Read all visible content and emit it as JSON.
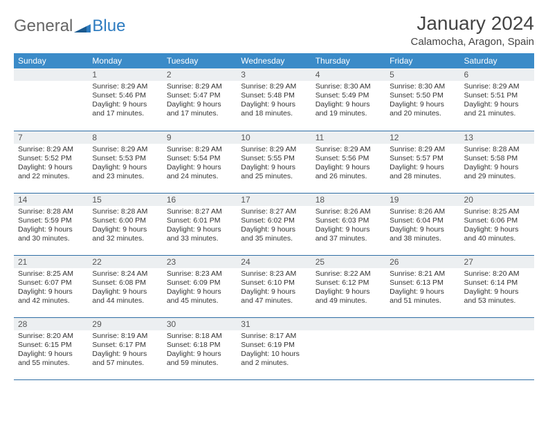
{
  "brand": {
    "part1": "General",
    "part2": "Blue"
  },
  "title": "January 2024",
  "location": "Calamocha, Aragon, Spain",
  "colors": {
    "header_bg": "#3b8bc8",
    "header_text": "#ffffff",
    "daynum_bg": "#eceff1",
    "border": "#2e6da4",
    "brand_gray": "#666666",
    "brand_blue": "#2e7cc0"
  },
  "day_names": [
    "Sunday",
    "Monday",
    "Tuesday",
    "Wednesday",
    "Thursday",
    "Friday",
    "Saturday"
  ],
  "weeks": [
    [
      null,
      {
        "n": "1",
        "sr": "Sunrise: 8:29 AM",
        "ss": "Sunset: 5:46 PM",
        "dl": "Daylight: 9 hours and 17 minutes."
      },
      {
        "n": "2",
        "sr": "Sunrise: 8:29 AM",
        "ss": "Sunset: 5:47 PM",
        "dl": "Daylight: 9 hours and 17 minutes."
      },
      {
        "n": "3",
        "sr": "Sunrise: 8:29 AM",
        "ss": "Sunset: 5:48 PM",
        "dl": "Daylight: 9 hours and 18 minutes."
      },
      {
        "n": "4",
        "sr": "Sunrise: 8:30 AM",
        "ss": "Sunset: 5:49 PM",
        "dl": "Daylight: 9 hours and 19 minutes."
      },
      {
        "n": "5",
        "sr": "Sunrise: 8:30 AM",
        "ss": "Sunset: 5:50 PM",
        "dl": "Daylight: 9 hours and 20 minutes."
      },
      {
        "n": "6",
        "sr": "Sunrise: 8:29 AM",
        "ss": "Sunset: 5:51 PM",
        "dl": "Daylight: 9 hours and 21 minutes."
      }
    ],
    [
      {
        "n": "7",
        "sr": "Sunrise: 8:29 AM",
        "ss": "Sunset: 5:52 PM",
        "dl": "Daylight: 9 hours and 22 minutes."
      },
      {
        "n": "8",
        "sr": "Sunrise: 8:29 AM",
        "ss": "Sunset: 5:53 PM",
        "dl": "Daylight: 9 hours and 23 minutes."
      },
      {
        "n": "9",
        "sr": "Sunrise: 8:29 AM",
        "ss": "Sunset: 5:54 PM",
        "dl": "Daylight: 9 hours and 24 minutes."
      },
      {
        "n": "10",
        "sr": "Sunrise: 8:29 AM",
        "ss": "Sunset: 5:55 PM",
        "dl": "Daylight: 9 hours and 25 minutes."
      },
      {
        "n": "11",
        "sr": "Sunrise: 8:29 AM",
        "ss": "Sunset: 5:56 PM",
        "dl": "Daylight: 9 hours and 26 minutes."
      },
      {
        "n": "12",
        "sr": "Sunrise: 8:29 AM",
        "ss": "Sunset: 5:57 PM",
        "dl": "Daylight: 9 hours and 28 minutes."
      },
      {
        "n": "13",
        "sr": "Sunrise: 8:28 AM",
        "ss": "Sunset: 5:58 PM",
        "dl": "Daylight: 9 hours and 29 minutes."
      }
    ],
    [
      {
        "n": "14",
        "sr": "Sunrise: 8:28 AM",
        "ss": "Sunset: 5:59 PM",
        "dl": "Daylight: 9 hours and 30 minutes."
      },
      {
        "n": "15",
        "sr": "Sunrise: 8:28 AM",
        "ss": "Sunset: 6:00 PM",
        "dl": "Daylight: 9 hours and 32 minutes."
      },
      {
        "n": "16",
        "sr": "Sunrise: 8:27 AM",
        "ss": "Sunset: 6:01 PM",
        "dl": "Daylight: 9 hours and 33 minutes."
      },
      {
        "n": "17",
        "sr": "Sunrise: 8:27 AM",
        "ss": "Sunset: 6:02 PM",
        "dl": "Daylight: 9 hours and 35 minutes."
      },
      {
        "n": "18",
        "sr": "Sunrise: 8:26 AM",
        "ss": "Sunset: 6:03 PM",
        "dl": "Daylight: 9 hours and 37 minutes."
      },
      {
        "n": "19",
        "sr": "Sunrise: 8:26 AM",
        "ss": "Sunset: 6:04 PM",
        "dl": "Daylight: 9 hours and 38 minutes."
      },
      {
        "n": "20",
        "sr": "Sunrise: 8:25 AM",
        "ss": "Sunset: 6:06 PM",
        "dl": "Daylight: 9 hours and 40 minutes."
      }
    ],
    [
      {
        "n": "21",
        "sr": "Sunrise: 8:25 AM",
        "ss": "Sunset: 6:07 PM",
        "dl": "Daylight: 9 hours and 42 minutes."
      },
      {
        "n": "22",
        "sr": "Sunrise: 8:24 AM",
        "ss": "Sunset: 6:08 PM",
        "dl": "Daylight: 9 hours and 44 minutes."
      },
      {
        "n": "23",
        "sr": "Sunrise: 8:23 AM",
        "ss": "Sunset: 6:09 PM",
        "dl": "Daylight: 9 hours and 45 minutes."
      },
      {
        "n": "24",
        "sr": "Sunrise: 8:23 AM",
        "ss": "Sunset: 6:10 PM",
        "dl": "Daylight: 9 hours and 47 minutes."
      },
      {
        "n": "25",
        "sr": "Sunrise: 8:22 AM",
        "ss": "Sunset: 6:12 PM",
        "dl": "Daylight: 9 hours and 49 minutes."
      },
      {
        "n": "26",
        "sr": "Sunrise: 8:21 AM",
        "ss": "Sunset: 6:13 PM",
        "dl": "Daylight: 9 hours and 51 minutes."
      },
      {
        "n": "27",
        "sr": "Sunrise: 8:20 AM",
        "ss": "Sunset: 6:14 PM",
        "dl": "Daylight: 9 hours and 53 minutes."
      }
    ],
    [
      {
        "n": "28",
        "sr": "Sunrise: 8:20 AM",
        "ss": "Sunset: 6:15 PM",
        "dl": "Daylight: 9 hours and 55 minutes."
      },
      {
        "n": "29",
        "sr": "Sunrise: 8:19 AM",
        "ss": "Sunset: 6:17 PM",
        "dl": "Daylight: 9 hours and 57 minutes."
      },
      {
        "n": "30",
        "sr": "Sunrise: 8:18 AM",
        "ss": "Sunset: 6:18 PM",
        "dl": "Daylight: 9 hours and 59 minutes."
      },
      {
        "n": "31",
        "sr": "Sunrise: 8:17 AM",
        "ss": "Sunset: 6:19 PM",
        "dl": "Daylight: 10 hours and 2 minutes."
      },
      null,
      null,
      null
    ]
  ]
}
